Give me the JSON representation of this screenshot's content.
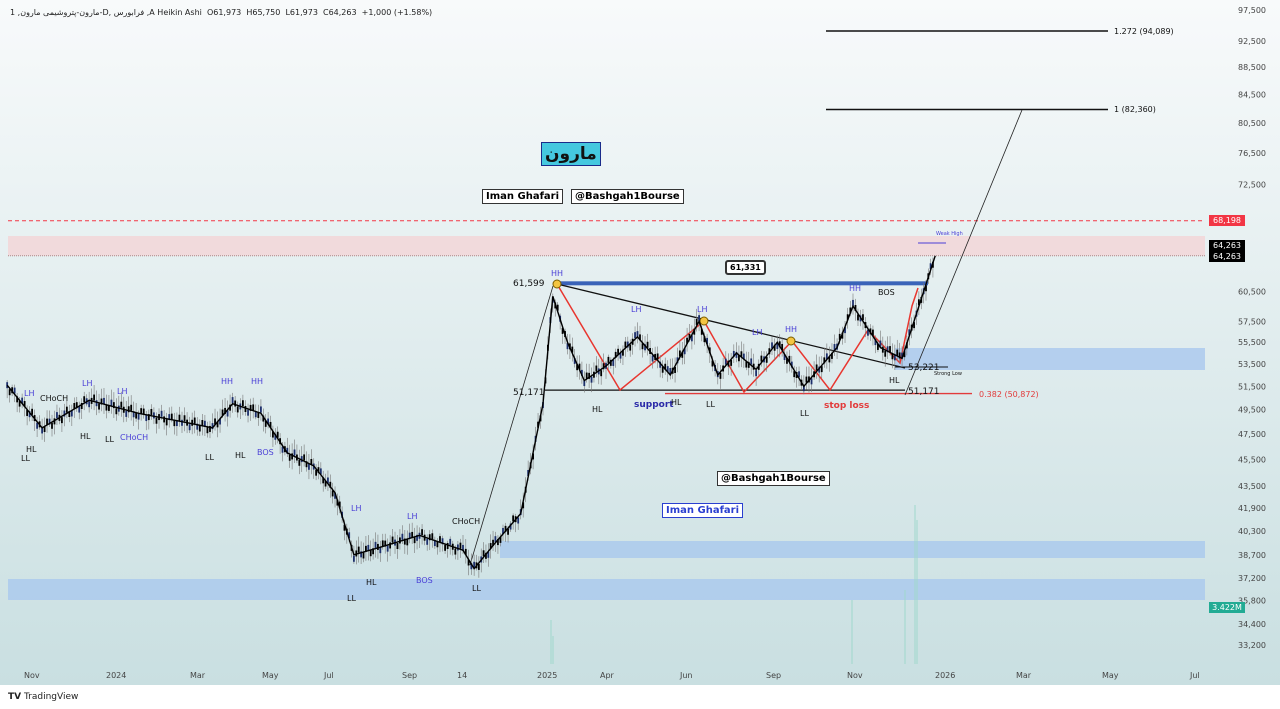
{
  "header": {
    "symbol": "1 ,مارون-پتروشیمی مارون-D, فرابورس ,A",
    "chart_style": "Heikin Ashi",
    "open": "O61,973",
    "high": "H65,750",
    "low": "L61,973",
    "close": "C64,263",
    "change": "+1,000 (+1.58%)"
  },
  "watermarks": {
    "title": "مارون",
    "author": "Iman Ghafari",
    "channel": "@Bashgah1Bourse"
  },
  "price_badges": {
    "alert": "68,198",
    "last1": "64,263",
    "last2": "64,263",
    "volume": "3.422M"
  },
  "colors": {
    "alert": "#f23645",
    "last": "#000000",
    "volume": "#22ab94",
    "zone_blue": "#a9c8ee",
    "zone_pink": "#f2d6d8",
    "zigzag": "#e8362f",
    "label_blue": "#4a3fd6"
  },
  "footer": {
    "brand": "TradingView"
  },
  "annotations": [
    "LH",
    "CHoCH",
    "LH",
    "LH",
    "HH",
    "HH",
    "HL",
    "LL",
    "HL",
    "LL",
    "CHoCH",
    "LL",
    "HL",
    "BOS",
    "LH",
    "LH",
    "CHoCH",
    "HL",
    "BOS",
    "LL",
    "LL",
    "HH",
    "61,599",
    "51,171",
    "LH",
    "LH",
    "LH",
    "HH",
    "HH",
    "BOS",
    "HL",
    "support",
    "HL",
    "LL",
    "LL",
    "stop loss",
    "HL",
    "53,221",
    "Strong Low",
    "51,171",
    "0.382 (50,872)",
    "Weak High",
    "1.272 (94,089)",
    "1 (82,360)"
  ],
  "callout": "61,331",
  "chart_data": {
    "type": "line",
    "title": "",
    "scale": "log",
    "ylim": [
      33200,
      97500
    ],
    "yticks": [
      "97,500",
      "92,500",
      "88,500",
      "84,500",
      "80,500",
      "76,500",
      "72,500",
      "60,500",
      "57,500",
      "55,500",
      "53,500",
      "51,500",
      "49,500",
      "47,500",
      "45,500",
      "43,500",
      "41,900",
      "40,300",
      "38,700",
      "37,200",
      "35,800",
      "34,400",
      "33,200"
    ],
    "xticks": [
      "Nov",
      "2024",
      "Mar",
      "May",
      "Jul",
      "Sep",
      "14",
      "2025",
      "Apr",
      "Jun",
      "Sep",
      "Nov",
      "2026",
      "Mar",
      "May",
      "Jul"
    ],
    "grid": false,
    "series": [
      {
        "x": [
          "2023-10-15",
          "2023-11-10",
          "2023-12-15",
          "2024-01-20",
          "2024-02-20",
          "2024-03-15",
          "2024-04-01",
          "2024-04-25",
          "2024-05-20",
          "2024-06-15",
          "2024-07-05",
          "2024-07-20",
          "2024-08-10",
          "2024-09-10",
          "2024-10-14",
          "2024-10-25",
          "2024-11-15",
          "2024-12-10",
          "2025-01-01",
          "2025-01-15",
          "2025-02-05",
          "2025-03-01",
          "2025-04-01",
          "2025-04-25",
          "2025-05-20",
          "2025-06-15",
          "2025-07-05",
          "2025-07-25",
          "2025-08-15",
          "2025-09-05",
          "2025-09-25",
          "2025-10-20",
          "2025-11-01",
          "2025-11-20",
          "2025-12-05",
          "2025-12-20",
          "2025-12-28"
        ],
        "y": [
          51600,
          48000,
          50300,
          49200,
          48500,
          48000,
          50000,
          49200,
          46000,
          45000,
          43000,
          38700,
          39200,
          40000,
          39000,
          37800,
          39500,
          41500,
          50000,
          60000,
          55500,
          52000,
          53300,
          56000,
          52500,
          57500,
          52500,
          54500,
          53000,
          55500,
          51500,
          55000,
          59000,
          55000,
          54000,
          60500,
          64263
        ]
      }
    ],
    "levels": {
      "resistance": 61331,
      "support": 51171,
      "stop_loss": 50872,
      "fib_1": 82360,
      "fib_1_272": 94089,
      "alert": 68198,
      "last": 64263,
      "strong_low": 53221
    }
  }
}
